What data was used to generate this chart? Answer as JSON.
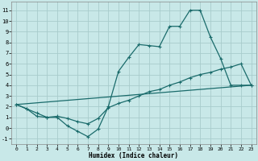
{
  "xlabel": "Humidex (Indice chaleur)",
  "background_color": "#c8e8e8",
  "grid_color": "#a8cccc",
  "line_color": "#1a6b6b",
  "xlim": [
    -0.5,
    23.5
  ],
  "ylim": [
    -1.5,
    11.8
  ],
  "xticks": [
    0,
    1,
    2,
    3,
    4,
    5,
    6,
    7,
    8,
    9,
    10,
    11,
    12,
    13,
    14,
    15,
    16,
    17,
    18,
    19,
    20,
    21,
    22,
    23
  ],
  "yticks": [
    -1,
    0,
    1,
    2,
    3,
    4,
    5,
    6,
    7,
    8,
    9,
    10,
    11
  ],
  "line1_x": [
    0,
    1,
    2,
    3,
    4,
    5,
    6,
    7,
    8,
    9,
    10,
    11,
    12,
    13,
    14,
    15,
    16,
    17,
    18,
    19,
    20,
    21,
    22,
    23
  ],
  "line1_y": [
    2.2,
    1.8,
    1.1,
    1.0,
    1.0,
    0.2,
    -0.3,
    -0.8,
    -0.1,
    2.0,
    5.3,
    6.6,
    7.8,
    7.7,
    7.6,
    9.5,
    9.5,
    11.0,
    11.0,
    8.5,
    6.5,
    4.0,
    4.0,
    4.0
  ],
  "line2_x": [
    0,
    1,
    2,
    3,
    4,
    5,
    6,
    7,
    8,
    9,
    10,
    11,
    12,
    13,
    14,
    15,
    16,
    17,
    18,
    19,
    20,
    21,
    22,
    23
  ],
  "line2_y": [
    2.2,
    1.8,
    1.4,
    1.0,
    1.1,
    0.9,
    0.6,
    0.4,
    0.9,
    1.9,
    2.3,
    2.6,
    3.0,
    3.4,
    3.6,
    4.0,
    4.3,
    4.7,
    5.0,
    5.2,
    5.5,
    5.7,
    6.0,
    4.0
  ],
  "line3_x": [
    0,
    23
  ],
  "line3_y": [
    2.2,
    4.0
  ]
}
